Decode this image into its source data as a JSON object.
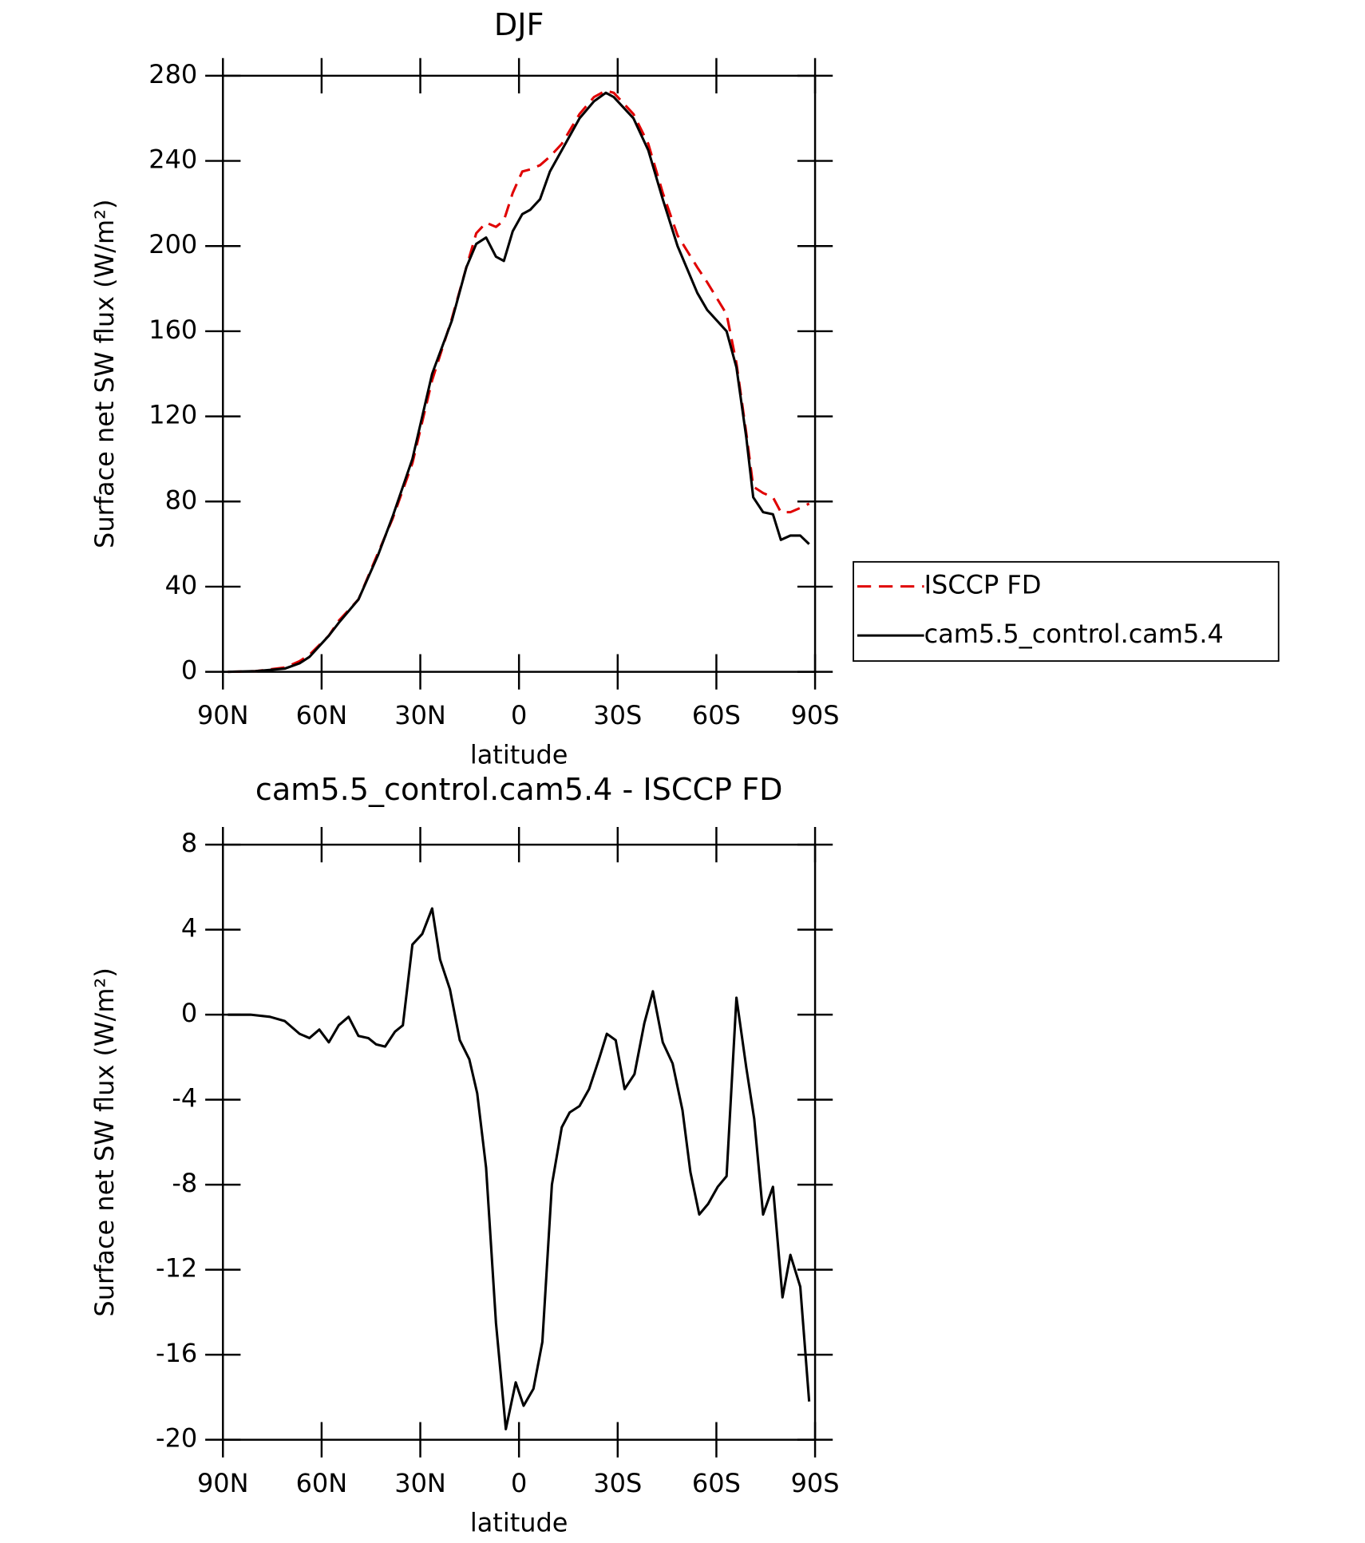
{
  "chart_data": [
    {
      "type": "line",
      "title": "DJF",
      "xlabel": "latitude",
      "ylabel": "Surface net SW flux (W/m²)",
      "x": [
        88.5,
        80.1,
        71.2,
        66.7,
        63.7,
        57.8,
        54.8,
        48.8,
        42.8,
        38.4,
        32.4,
        26.4,
        20.4,
        16.0,
        13.0,
        10.0,
        7.0,
        4.6,
        1.9,
        -1.0,
        -3.4,
        -6.4,
        -9.4,
        -13.0,
        -18.4,
        -22.8,
        -26.4,
        -28.8,
        -34.8,
        -39.3,
        -43.7,
        -48.2,
        -54.2,
        -57.2,
        -63.1,
        -66.1,
        -69.1,
        -71.2,
        -74.2,
        -77.2,
        -79.6,
        -82.5,
        -85.5,
        -88.2
      ],
      "series": [
        {
          "name": "ISCCP FD",
          "color": "#e00000",
          "line_style": "dashed",
          "values": [
            0,
            0.3,
            2,
            5,
            8,
            17,
            24,
            34,
            56,
            72,
            98,
            137,
            166,
            190,
            206,
            211,
            209,
            212,
            225,
            235,
            236,
            238,
            242,
            248,
            262,
            270,
            273,
            272,
            262,
            248,
            225,
            205,
            190,
            183,
            168,
            145,
            112,
            87,
            84,
            82,
            75,
            75,
            77,
            79
          ]
        },
        {
          "name": "cam5.5_control.cam5.4",
          "color": "#000000",
          "line_style": "solid",
          "values": [
            0,
            0.3,
            1.5,
            4,
            7,
            17,
            23,
            34,
            55,
            73,
            100,
            140,
            165,
            190,
            201,
            204,
            195,
            193,
            207,
            215,
            217,
            222,
            235,
            245,
            260,
            268,
            272,
            270,
            260,
            245,
            222,
            200,
            178,
            170,
            160,
            143,
            110,
            82,
            75,
            74,
            62,
            64,
            64,
            60
          ]
        }
      ],
      "xlim": [
        90,
        -90
      ],
      "xticks": [
        {
          "value": 90,
          "label": "90N"
        },
        {
          "value": 60,
          "label": "60N"
        },
        {
          "value": 30,
          "label": "30N"
        },
        0,
        {
          "value": -30,
          "label": "30S"
        },
        {
          "value": -60,
          "label": "60S"
        },
        {
          "value": -90,
          "label": "90S"
        }
      ],
      "ylim": [
        0,
        280
      ],
      "yticks": [
        0,
        40,
        80,
        120,
        160,
        200,
        240,
        280
      ],
      "legend": "right"
    },
    {
      "type": "line",
      "title": "cam5.5_control.cam5.4 - ISCCP FD",
      "xlabel": "latitude",
      "ylabel": "Surface net SW flux (W/m²)",
      "x": [
        88.5,
        81.6,
        75.7,
        71.2,
        66.7,
        63.7,
        60.7,
        57.8,
        54.8,
        51.8,
        48.8,
        45.8,
        43.4,
        40.7,
        37.7,
        35.3,
        32.4,
        29.4,
        26.4,
        24.0,
        21.0,
        18.0,
        15.1,
        12.7,
        10.0,
        7.0,
        4.0,
        1.0,
        -1.4,
        -4.4,
        -7.1,
        -10.0,
        -13.0,
        -15.4,
        -18.4,
        -21.3,
        -24.3,
        -26.7,
        -29.4,
        -32.1,
        -35.1,
        -38.1,
        -40.7,
        -43.7,
        -46.7,
        -49.7,
        -52.1,
        -54.8,
        -57.5,
        -60.4,
        -63.1,
        -66.1,
        -69.1,
        -71.5,
        -74.2,
        -77.2,
        -80.1,
        -82.5,
        -85.5,
        -88.2
      ],
      "series": [
        {
          "name": "cam5.5_control.cam5.4 - ISCCP FD",
          "color": "#000000",
          "line_style": "solid",
          "values": [
            0,
            0,
            -0.1,
            -0.3,
            -0.9,
            -1.1,
            -0.7,
            -1.3,
            -0.5,
            -0.1,
            -1,
            -1.1,
            -1.4,
            -1.5,
            -0.8,
            -0.5,
            3.3,
            3.8,
            5.0,
            2.6,
            1.2,
            -1.2,
            -2.1,
            -3.7,
            -7.2,
            -14.5,
            -19.5,
            -17.3,
            -18.4,
            -17.6,
            -15.4,
            -8.0,
            -5.3,
            -4.6,
            -4.3,
            -3.5,
            -2.1,
            -0.9,
            -1.2,
            -3.5,
            -2.8,
            -0.4,
            1.1,
            -1.3,
            -2.3,
            -4.5,
            -7.4,
            -9.4,
            -8.9,
            -8.1,
            -7.6,
            0.8,
            -2.5,
            -4.9,
            -9.4,
            -8.1,
            -13.3,
            -11.3,
            -12.8,
            -18.2
          ]
        }
      ],
      "xlim": [
        90,
        -90
      ],
      "xticks": [
        {
          "value": 90,
          "label": "90N"
        },
        {
          "value": 60,
          "label": "60N"
        },
        {
          "value": 30,
          "label": "30N"
        },
        0,
        {
          "value": -30,
          "label": "30S"
        },
        {
          "value": -60,
          "label": "60S"
        },
        {
          "value": -90,
          "label": "90S"
        }
      ],
      "ylim": [
        -20,
        8
      ],
      "yticks": [
        -20,
        -16,
        -12,
        -8,
        -4,
        0,
        4,
        8
      ]
    }
  ]
}
